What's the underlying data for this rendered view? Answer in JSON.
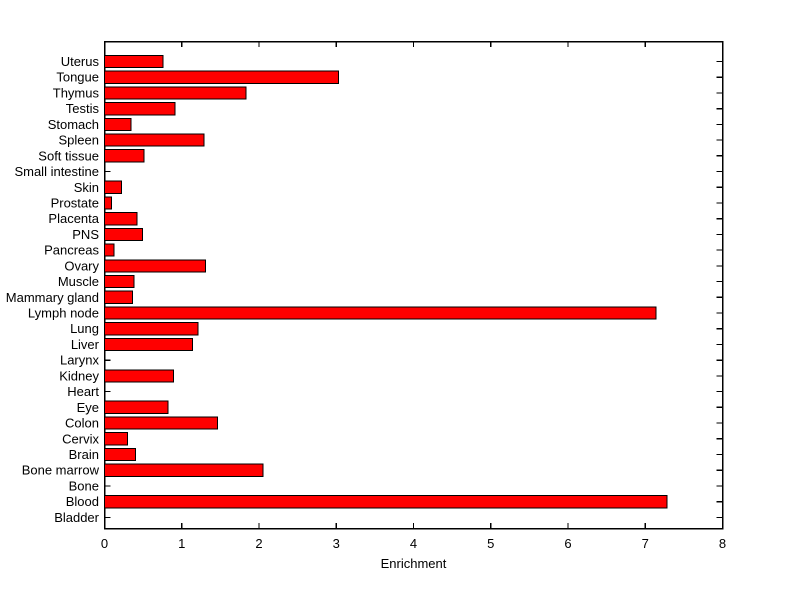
{
  "figure": {
    "background": "#ffffff"
  },
  "chart_data": {
    "type": "bar",
    "orientation": "horizontal",
    "title": "",
    "xlabel": "Enrichment",
    "ylabel": "",
    "xlim": [
      0,
      8
    ],
    "xticks": [
      0,
      1,
      2,
      3,
      4,
      5,
      6,
      7,
      8
    ],
    "grid": false,
    "legend": null,
    "bar_color": "#ff0000",
    "bar_edge_color": "#000000",
    "axis_color": "#000000",
    "text_color": "#000000",
    "categories_top_to_bottom": [
      "Uterus",
      "Tongue",
      "Thymus",
      "Testis",
      "Stomach",
      "Spleen",
      "Soft tissue",
      "Small intestine",
      "Skin",
      "Prostate",
      "Placenta",
      "PNS",
      "Pancreas",
      "Ovary",
      "Muscle",
      "Mammary gland",
      "Lymph node",
      "Lung",
      "Liver",
      "Larynx",
      "Kidney",
      "Heart",
      "Eye",
      "Colon",
      "Cervix",
      "Brain",
      "Bone marrow",
      "Bone",
      "Blood",
      "Bladder"
    ],
    "values": [
      0.76,
      3.03,
      1.83,
      0.91,
      0.34,
      1.29,
      0.51,
      0,
      0.22,
      0.09,
      0.42,
      0.49,
      0.12,
      1.31,
      0.38,
      0.36,
      7.14,
      1.21,
      1.14,
      0,
      0.89,
      0,
      0.82,
      1.46,
      0.3,
      0.4,
      2.05,
      0,
      7.28,
      0
    ]
  }
}
